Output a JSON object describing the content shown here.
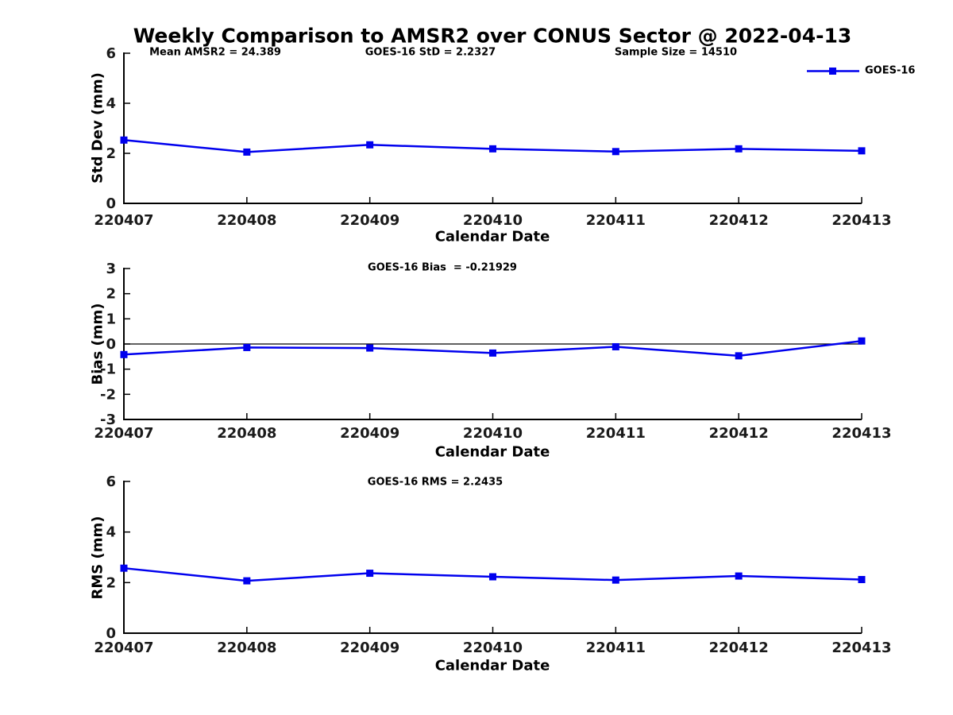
{
  "title": "Weekly Comparison to AMSR2 over CONUS Sector @ 2022-04-13",
  "colors": {
    "series": "#0000EE",
    "axis": "#000000",
    "tick_label": "#1a1a1a"
  },
  "legend": {
    "label": "GOES-16"
  },
  "chart_data": [
    {
      "type": "line",
      "name": "std_dev",
      "annotations": [
        "Mean AMSR2 = 24.389",
        "GOES-16 StD = 2.2327",
        "Sample Size = 14510"
      ],
      "xlabel": "Calendar Date",
      "ylabel": "Std Dev (mm)",
      "categories": [
        "220407",
        "220408",
        "220409",
        "220410",
        "220411",
        "220412",
        "220413"
      ],
      "series": [
        {
          "name": "GOES-16",
          "values": [
            2.53,
            2.05,
            2.34,
            2.18,
            2.07,
            2.18,
            2.1
          ]
        }
      ],
      "ylim": [
        0,
        6
      ],
      "yticks": [
        0,
        2,
        4,
        6
      ],
      "zero_line": false,
      "grid": false,
      "legend_position": "top-right",
      "marker": "square"
    },
    {
      "type": "line",
      "name": "bias",
      "annotations": [
        "GOES-16 Bias  = -0.21929"
      ],
      "xlabel": "Calendar Date",
      "ylabel": "Bias (mm)",
      "categories": [
        "220407",
        "220408",
        "220409",
        "220410",
        "220411",
        "220412",
        "220413"
      ],
      "series": [
        {
          "name": "GOES-16",
          "values": [
            -0.42,
            -0.14,
            -0.16,
            -0.36,
            -0.11,
            -0.47,
            0.12
          ]
        }
      ],
      "ylim": [
        -3,
        3
      ],
      "yticks": [
        -3,
        -2,
        -1,
        0,
        1,
        2,
        3
      ],
      "zero_line": true,
      "grid": false,
      "marker": "square"
    },
    {
      "type": "line",
      "name": "rms",
      "annotations": [
        "GOES-16 RMS = 2.2435"
      ],
      "xlabel": "Calendar Date",
      "ylabel": "RMS (mm)",
      "categories": [
        "220407",
        "220408",
        "220409",
        "220410",
        "220411",
        "220412",
        "220413"
      ],
      "series": [
        {
          "name": "GOES-16",
          "values": [
            2.57,
            2.07,
            2.37,
            2.23,
            2.1,
            2.26,
            2.12
          ]
        }
      ],
      "ylim": [
        0,
        6
      ],
      "yticks": [
        0,
        2,
        4,
        6
      ],
      "zero_line": false,
      "grid": false,
      "marker": "square"
    }
  ]
}
